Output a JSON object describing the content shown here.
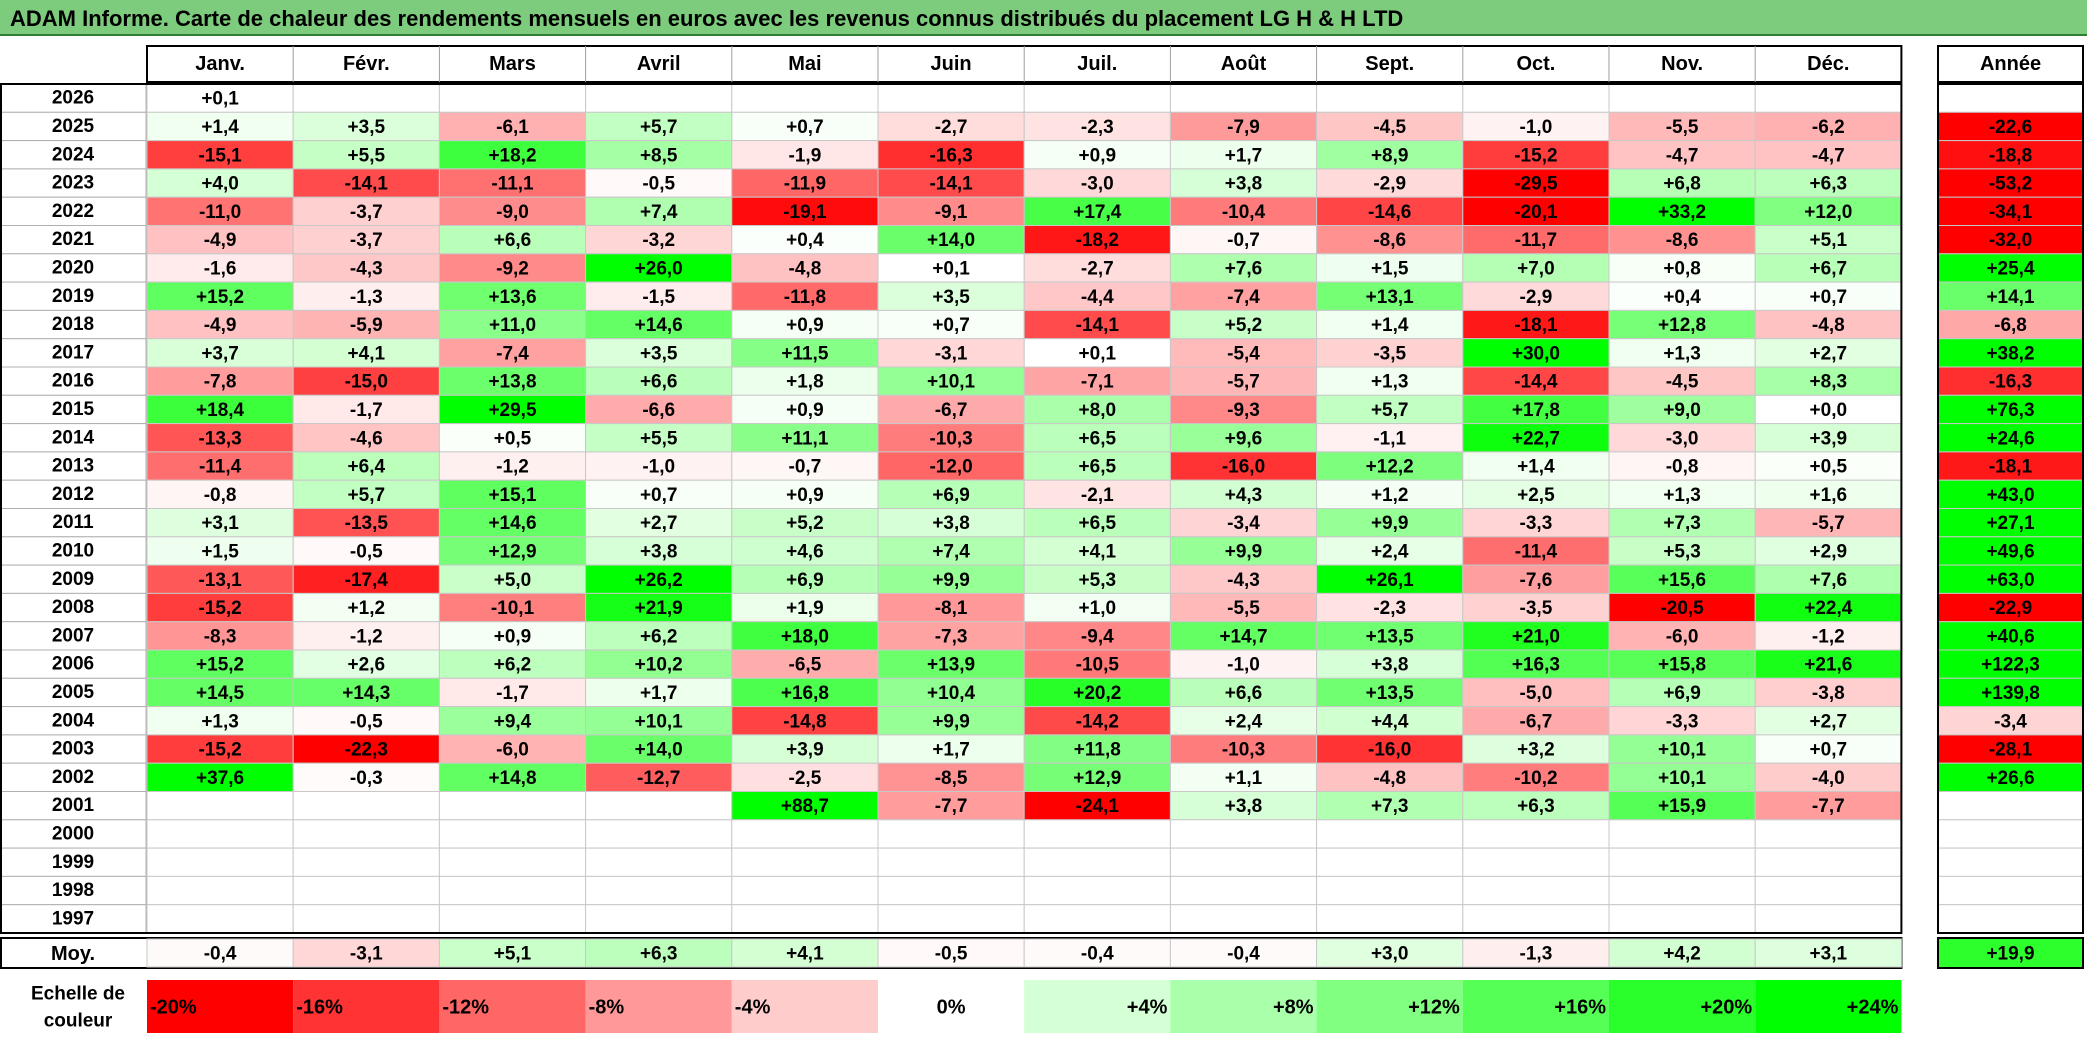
{
  "title": "ADAM Informe. Carte de chaleur des rendements mensuels en euros avec les revenus connus distribués du placement LG H & H LTD",
  "colors": {
    "negative_max": "#ff0000",
    "neutral": "#ffffff",
    "positive_max": "#00ff00",
    "title_bg": "#7dcc7d"
  },
  "chart_data": {
    "type": "heatmap",
    "months": [
      "Janv.",
      "Févr.",
      "Mars",
      "Avril",
      "Mai",
      "Juin",
      "Juil.",
      "Août",
      "Sept.",
      "Oct.",
      "Nov.",
      "Déc."
    ],
    "year_header": "Année",
    "color_range": [
      -20,
      24
    ],
    "rows": [
      {
        "year": "2026",
        "values": [
          "+0,1",
          "",
          "",
          "",
          "",
          "",
          "",
          "",
          "",
          "",
          "",
          ""
        ],
        "annual": ""
      },
      {
        "year": "2025",
        "values": [
          "+1,4",
          "+3,5",
          "-6,1",
          "+5,7",
          "+0,7",
          "-2,7",
          "-2,3",
          "-7,9",
          "-4,5",
          "-1,0",
          "-5,5",
          "-6,2"
        ],
        "annual": "-22,6"
      },
      {
        "year": "2024",
        "values": [
          "-15,1",
          "+5,5",
          "+18,2",
          "+8,5",
          "-1,9",
          "-16,3",
          "+0,9",
          "+1,7",
          "+8,9",
          "-15,2",
          "-4,7",
          "-4,7"
        ],
        "annual": "-18,8"
      },
      {
        "year": "2023",
        "values": [
          "+4,0",
          "-14,1",
          "-11,1",
          "-0,5",
          "-11,9",
          "-14,1",
          "-3,0",
          "+3,8",
          "-2,9",
          "-29,5",
          "+6,8",
          "+6,3"
        ],
        "annual": "-53,2"
      },
      {
        "year": "2022",
        "values": [
          "-11,0",
          "-3,7",
          "-9,0",
          "+7,4",
          "-19,1",
          "-9,1",
          "+17,4",
          "-10,4",
          "-14,6",
          "-20,1",
          "+33,2",
          "+12,0"
        ],
        "annual": "-34,1"
      },
      {
        "year": "2021",
        "values": [
          "-4,9",
          "-3,7",
          "+6,6",
          "-3,2",
          "+0,4",
          "+14,0",
          "-18,2",
          "-0,7",
          "-8,6",
          "-11,7",
          "-8,6",
          "+5,1"
        ],
        "annual": "-32,0"
      },
      {
        "year": "2020",
        "values": [
          "-1,6",
          "-4,3",
          "-9,2",
          "+26,0",
          "-4,8",
          "+0,1",
          "-2,7",
          "+7,6",
          "+1,5",
          "+7,0",
          "+0,8",
          "+6,7"
        ],
        "annual": "+25,4"
      },
      {
        "year": "2019",
        "values": [
          "+15,2",
          "-1,3",
          "+13,6",
          "-1,5",
          "-11,8",
          "+3,5",
          "-4,4",
          "-7,4",
          "+13,1",
          "-2,9",
          "+0,4",
          "+0,7"
        ],
        "annual": "+14,1"
      },
      {
        "year": "2018",
        "values": [
          "-4,9",
          "-5,9",
          "+11,0",
          "+14,6",
          "+0,9",
          "+0,7",
          "-14,1",
          "+5,2",
          "+1,4",
          "-18,1",
          "+12,8",
          "-4,8"
        ],
        "annual": "-6,8"
      },
      {
        "year": "2017",
        "values": [
          "+3,7",
          "+4,1",
          "-7,4",
          "+3,5",
          "+11,5",
          "-3,1",
          "+0,1",
          "-5,4",
          "-3,5",
          "+30,0",
          "+1,3",
          "+2,7"
        ],
        "annual": "+38,2"
      },
      {
        "year": "2016",
        "values": [
          "-7,8",
          "-15,0",
          "+13,8",
          "+6,6",
          "+1,8",
          "+10,1",
          "-7,1",
          "-5,7",
          "+1,3",
          "-14,4",
          "-4,5",
          "+8,3"
        ],
        "annual": "-16,3"
      },
      {
        "year": "2015",
        "values": [
          "+18,4",
          "-1,7",
          "+29,5",
          "-6,6",
          "+0,9",
          "-6,7",
          "+8,0",
          "-9,3",
          "+5,7",
          "+17,8",
          "+9,0",
          "+0,0"
        ],
        "annual": "+76,3"
      },
      {
        "year": "2014",
        "values": [
          "-13,3",
          "-4,6",
          "+0,5",
          "+5,5",
          "+11,1",
          "-10,3",
          "+6,5",
          "+9,6",
          "-1,1",
          "+22,7",
          "-3,0",
          "+3,9"
        ],
        "annual": "+24,6"
      },
      {
        "year": "2013",
        "values": [
          "-11,4",
          "+6,4",
          "-1,2",
          "-1,0",
          "-0,7",
          "-12,0",
          "+6,5",
          "-16,0",
          "+12,2",
          "+1,4",
          "-0,8",
          "+0,5"
        ],
        "annual": "-18,1"
      },
      {
        "year": "2012",
        "values": [
          "-0,8",
          "+5,7",
          "+15,1",
          "+0,7",
          "+0,9",
          "+6,9",
          "-2,1",
          "+4,3",
          "+1,2",
          "+2,5",
          "+1,3",
          "+1,6"
        ],
        "annual": "+43,0"
      },
      {
        "year": "2011",
        "values": [
          "+3,1",
          "-13,5",
          "+14,6",
          "+2,7",
          "+5,2",
          "+3,8",
          "+6,5",
          "-3,4",
          "+9,9",
          "-3,3",
          "+7,3",
          "-5,7"
        ],
        "annual": "+27,1"
      },
      {
        "year": "2010",
        "values": [
          "+1,5",
          "-0,5",
          "+12,9",
          "+3,8",
          "+4,6",
          "+7,4",
          "+4,1",
          "+9,9",
          "+2,4",
          "-11,4",
          "+5,3",
          "+2,9"
        ],
        "annual": "+49,6"
      },
      {
        "year": "2009",
        "values": [
          "-13,1",
          "-17,4",
          "+5,0",
          "+26,2",
          "+6,9",
          "+9,9",
          "+5,3",
          "-4,3",
          "+26,1",
          "-7,6",
          "+15,6",
          "+7,6"
        ],
        "annual": "+63,0"
      },
      {
        "year": "2008",
        "values": [
          "-15,2",
          "+1,2",
          "-10,1",
          "+21,9",
          "+1,9",
          "-8,1",
          "+1,0",
          "-5,5",
          "-2,3",
          "-3,5",
          "-20,5",
          "+22,4"
        ],
        "annual": "-22,9"
      },
      {
        "year": "2007",
        "values": [
          "-8,3",
          "-1,2",
          "+0,9",
          "+6,2",
          "+18,0",
          "-7,3",
          "-9,4",
          "+14,7",
          "+13,5",
          "+21,0",
          "-6,0",
          "-1,2"
        ],
        "annual": "+40,6"
      },
      {
        "year": "2006",
        "values": [
          "+15,2",
          "+2,6",
          "+6,2",
          "+10,2",
          "-6,5",
          "+13,9",
          "-10,5",
          "-1,0",
          "+3,8",
          "+16,3",
          "+15,8",
          "+21,6"
        ],
        "annual": "+122,3"
      },
      {
        "year": "2005",
        "values": [
          "+14,5",
          "+14,3",
          "-1,7",
          "+1,7",
          "+16,8",
          "+10,4",
          "+20,2",
          "+6,6",
          "+13,5",
          "-5,0",
          "+6,9",
          "-3,8"
        ],
        "annual": "+139,8"
      },
      {
        "year": "2004",
        "values": [
          "+1,3",
          "-0,5",
          "+9,4",
          "+10,1",
          "-14,8",
          "+9,9",
          "-14,2",
          "+2,4",
          "+4,4",
          "-6,7",
          "-3,3",
          "+2,7"
        ],
        "annual": "-3,4"
      },
      {
        "year": "2003",
        "values": [
          "-15,2",
          "-22,3",
          "-6,0",
          "+14,0",
          "+3,9",
          "+1,7",
          "+11,8",
          "-10,3",
          "-16,0",
          "+3,2",
          "+10,1",
          "+0,7"
        ],
        "annual": "-28,1"
      },
      {
        "year": "2002",
        "values": [
          "+37,6",
          "-0,3",
          "+14,8",
          "-12,7",
          "-2,5",
          "-8,5",
          "+12,9",
          "+1,1",
          "-4,8",
          "-10,2",
          "+10,1",
          "-4,0"
        ],
        "annual": "+26,6"
      },
      {
        "year": "2001",
        "values": [
          "",
          "",
          "",
          "",
          "+88,7",
          "-7,7",
          "-24,1",
          "+3,8",
          "+7,3",
          "+6,3",
          "+15,9",
          "-7,7"
        ],
        "annual": ""
      },
      {
        "year": "2000",
        "values": [
          "",
          "",
          "",
          "",
          "",
          "",
          "",
          "",
          "",
          "",
          "",
          ""
        ],
        "annual": ""
      },
      {
        "year": "1999",
        "values": [
          "",
          "",
          "",
          "",
          "",
          "",
          "",
          "",
          "",
          "",
          "",
          ""
        ],
        "annual": ""
      },
      {
        "year": "1998",
        "values": [
          "",
          "",
          "",
          "",
          "",
          "",
          "",
          "",
          "",
          "",
          "",
          ""
        ],
        "annual": ""
      },
      {
        "year": "1997",
        "values": [
          "",
          "",
          "",
          "",
          "",
          "",
          "",
          "",
          "",
          "",
          "",
          ""
        ],
        "annual": ""
      }
    ],
    "average": {
      "label": "Moy.",
      "values": [
        "-0,4",
        "-3,1",
        "+5,1",
        "+6,3",
        "+4,1",
        "-0,5",
        "-0,4",
        "-0,4",
        "+3,0",
        "-1,3",
        "+4,2",
        "+3,1"
      ],
      "annual": "+19,9"
    },
    "scale": {
      "label_line1": "Echelle de",
      "label_line2": "couleur",
      "values": [
        -20,
        -16,
        -12,
        -8,
        -4,
        0,
        4,
        8,
        12,
        16,
        20,
        24
      ],
      "labels": [
        "-20%",
        "-16%",
        "-12%",
        "-8%",
        "-4%",
        "0%",
        "+4%",
        "+8%",
        "+12%",
        "+16%",
        "+20%",
        "+24%"
      ]
    }
  }
}
